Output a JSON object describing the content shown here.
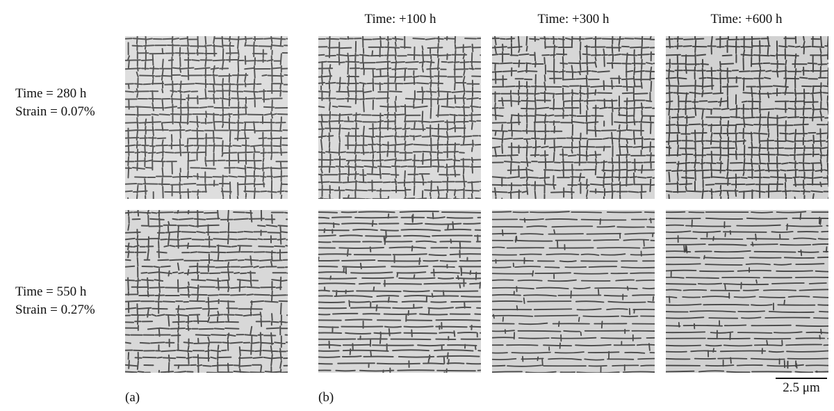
{
  "columns": [
    "Time: +100 h",
    "Time: +300 h",
    "Time: +600 h"
  ],
  "rows": [
    {
      "time": "Time = 280 h",
      "strain": "Strain = 0.07%"
    },
    {
      "time": "Time = 550 h",
      "strain": "Strain = 0.27%"
    }
  ],
  "panel_labels": {
    "a": "(a)",
    "b": "(b)"
  },
  "scale_bar": "2.5 μm",
  "colors": {
    "matrix_light": "#d9d9d9",
    "channel_dark": "#2a2a2a"
  }
}
